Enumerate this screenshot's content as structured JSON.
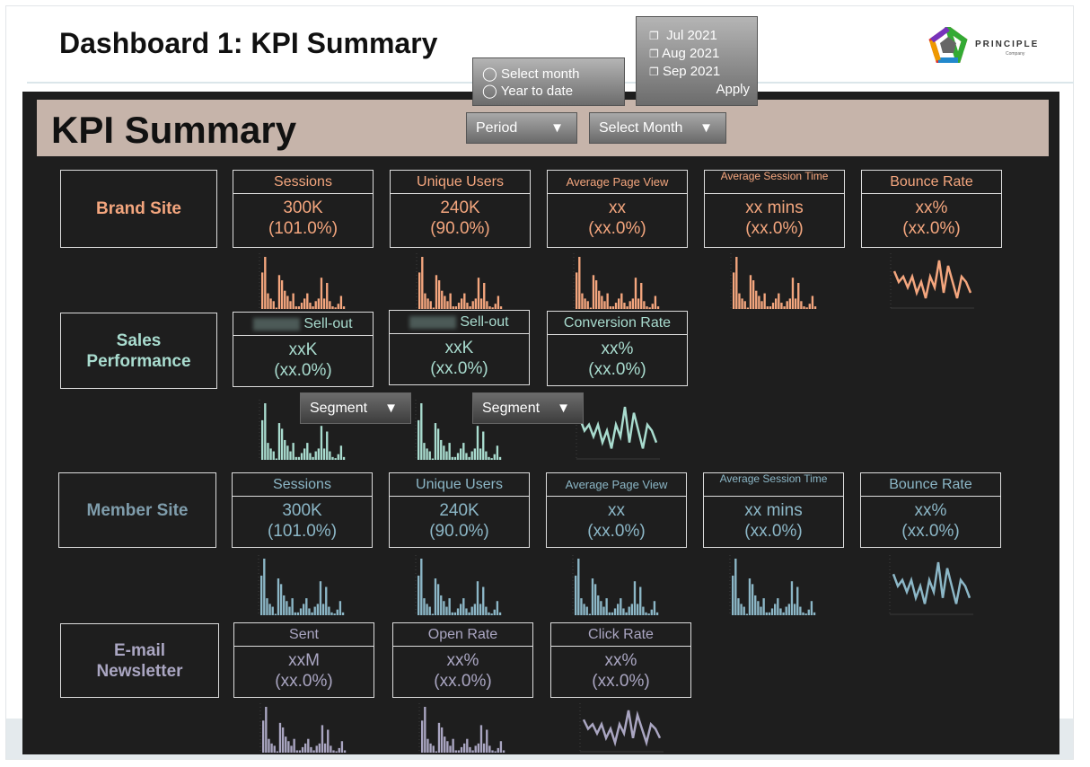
{
  "header": {
    "title": "Dashboard 1: KPI Summary",
    "logo_text": "PRINCIPLE",
    "logo_sub": "Company"
  },
  "banner": {
    "title": "KPI Summary"
  },
  "filters": {
    "period_label": "Period",
    "month_label": "Select Month",
    "period_options": [
      "Select month",
      "Year to date"
    ],
    "month_options": [
      "Jul 2021",
      "Aug 2021",
      "Sep 2021"
    ],
    "apply_label": "Apply",
    "segment_label": "Segment"
  },
  "colors": {
    "brand": "#f4a67e",
    "sales": "#a9dccf",
    "member": "#8cb7c7",
    "member_label": "#7f9dac",
    "email": "#aaa6c2"
  },
  "sparkline_bars": [
    7,
    10,
    3,
    2,
    1.5,
    0,
    6.5,
    5.5,
    3.5,
    2.5,
    1.5,
    3,
    0.5,
    0.5,
    1.2,
    2,
    3,
    1.2,
    0.5,
    1.5,
    2,
    6,
    2,
    5,
    1.5,
    0.5,
    0.3,
    1,
    2.5,
    0.5
  ],
  "sparkline_line": [
    6,
    4,
    5,
    3,
    5,
    2,
    4,
    1,
    5,
    3,
    8,
    2,
    7,
    4,
    1,
    5,
    4,
    2
  ],
  "sections": [
    {
      "key": "brand",
      "label": "Brand Site",
      "cards": [
        {
          "title": "Sessions",
          "value": "300K",
          "change": "(101.0%)",
          "chart": "bar"
        },
        {
          "title": "Unique Users",
          "value": "240K",
          "change": "(90.0%)",
          "chart": "bar"
        },
        {
          "title": "Average Page View",
          "value": "xx",
          "change": "(xx.0%)",
          "chart": "bar"
        },
        {
          "title": "Average Session Time",
          "value": "xx mins",
          "change": "(xx.0%)",
          "chart": "bar"
        },
        {
          "title": "Bounce Rate",
          "value": "xx%",
          "change": "(xx.0%)",
          "chart": "line"
        }
      ]
    },
    {
      "key": "sales",
      "label": "Sales Performance",
      "cards": [
        {
          "title": "Sell-out",
          "value": "xxK",
          "change": "(xx.0%)",
          "chart": "bar"
        },
        {
          "title": "Sell-out",
          "value": "xxK",
          "change": "(xx.0%)",
          "chart": "bar"
        },
        {
          "title": "Conversion Rate",
          "value": "xx%",
          "change": "(xx.0%)",
          "chart": "line"
        }
      ]
    },
    {
      "key": "member",
      "label": "Member Site",
      "cards": [
        {
          "title": "Sessions",
          "value": "300K",
          "change": "(101.0%)",
          "chart": "bar"
        },
        {
          "title": "Unique Users",
          "value": "240K",
          "change": "(90.0%)",
          "chart": "bar"
        },
        {
          "title": "Average Page View",
          "value": "xx",
          "change": "(xx.0%)",
          "chart": "bar"
        },
        {
          "title": "Average Session Time",
          "value": "xx mins",
          "change": "(xx.0%)",
          "chart": "bar"
        },
        {
          "title": "Bounce Rate",
          "value": "xx%",
          "change": "(xx.0%)",
          "chart": "line"
        }
      ]
    },
    {
      "key": "email",
      "label": "E-mail Newsletter",
      "cards": [
        {
          "title": "Sent",
          "value": "xxM",
          "change": "(xx.0%)",
          "chart": "bar"
        },
        {
          "title": "Open Rate",
          "value": "xx%",
          "change": "(xx.0%)",
          "chart": "bar"
        },
        {
          "title": "Click Rate",
          "value": "xx%",
          "change": "(xx.0%)",
          "chart": "line"
        }
      ]
    }
  ]
}
